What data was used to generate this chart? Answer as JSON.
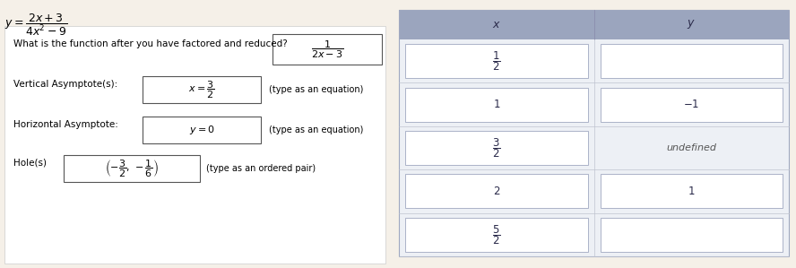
{
  "title_formula": "y = \\frac{2x+3}{4x^2-9}",
  "bg_color": "#f5f0e8",
  "left_panel": {
    "bg_color": "#f5f0e8",
    "question1": "What is the function after you have factored and reduced?",
    "answer1": "\\frac{1}{2x-3}",
    "question2_label": "Vertical Asymptote(s):",
    "answer2": "x = \\frac{3}{2}",
    "answer2_hint": "(type as an equation)",
    "question3_label": "Horizontal Asymptote:",
    "answer3": "y = 0",
    "answer3_hint": "(type as an equation)",
    "question4_label": "Hole(s)",
    "answer4": "\\left(-\\frac{3}{2}, -\\frac{1}{6}\\right)",
    "answer4_hint": "(type as an ordered pair)"
  },
  "right_panel": {
    "header_bg": "#a0a8c0",
    "header_x": "x",
    "header_y": "y",
    "row_bg": "#eef0f5",
    "rows": [
      {
        "x": "\\frac{1}{2}",
        "y": ""
      },
      {
        "x": "1",
        "y": "-1"
      },
      {
        "x": "\\frac{3}{2}",
        "y_text": "undefined"
      },
      {
        "x": "2",
        "y": "1"
      },
      {
        "x": "\\frac{5}{2}",
        "y": ""
      }
    ]
  }
}
